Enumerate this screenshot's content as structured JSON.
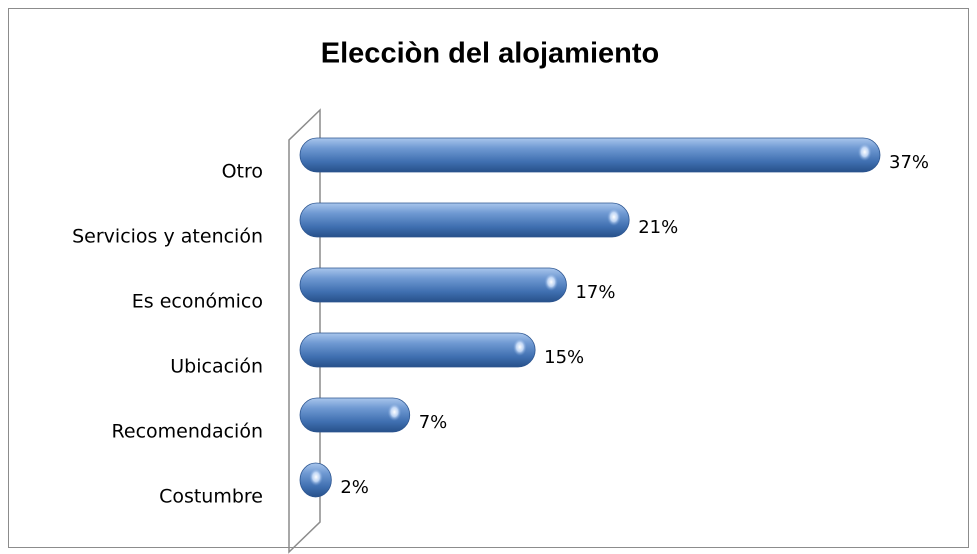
{
  "chart_data": {
    "type": "bar",
    "orientation": "horizontal",
    "title": "Elecciòn del alojamiento",
    "categories": [
      "Otro",
      "Servicios y atención",
      "Es económico",
      "Ubicación",
      "Recomendación",
      "Costumbre"
    ],
    "values": [
      37,
      21,
      17,
      15,
      7,
      2
    ],
    "value_labels": [
      "37%",
      "21%",
      "17%",
      "15%",
      "7%",
      "2%"
    ],
    "color": "#4f81bd"
  }
}
